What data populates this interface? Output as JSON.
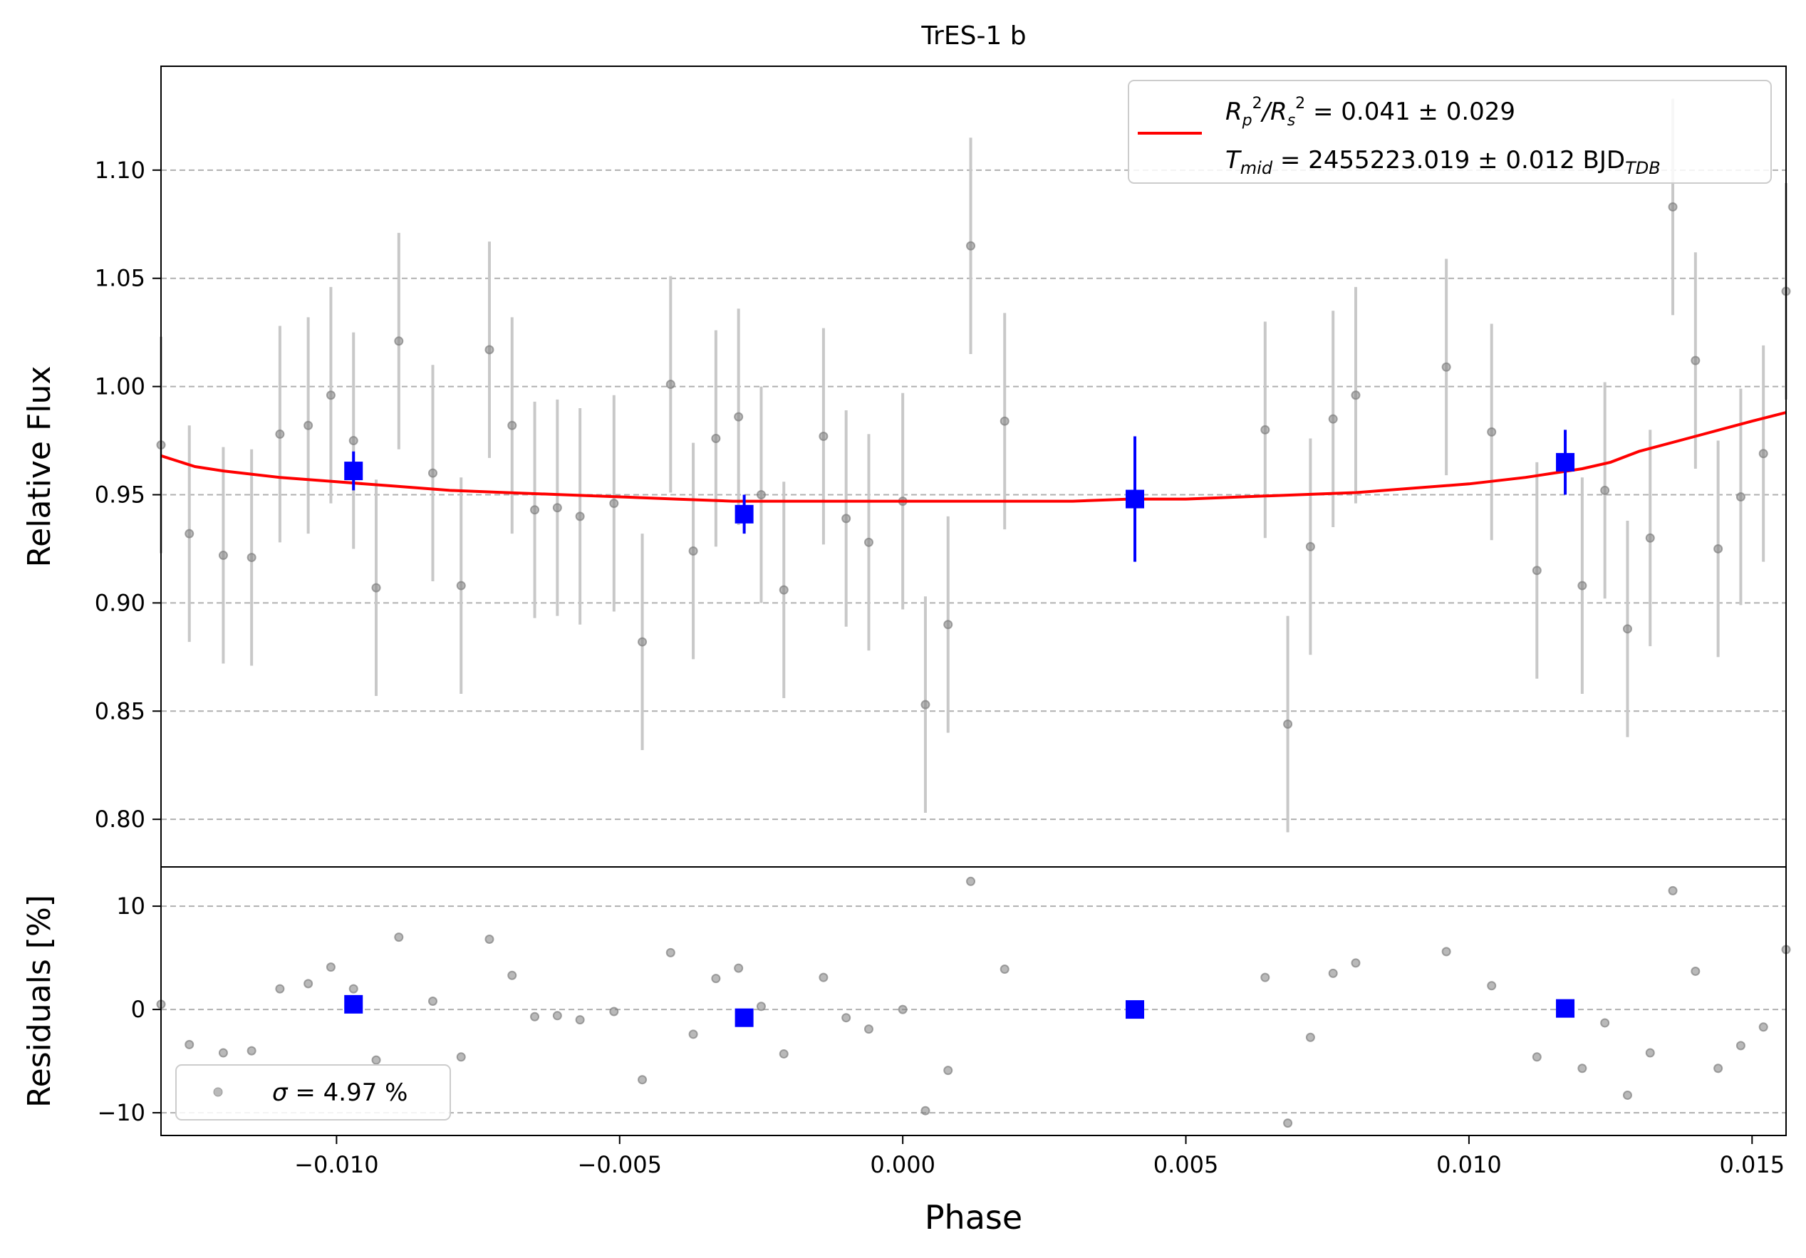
{
  "chart_data": [
    {
      "type": "scatter",
      "title": "TrES-1 b",
      "xlabel": "",
      "ylabel": "Relative Flux",
      "xlim": [
        -0.0131,
        0.0156
      ],
      "ylim": [
        0.778,
        1.148
      ],
      "yticks": [
        0.8,
        0.85,
        0.9,
        0.95,
        1.0,
        1.05,
        1.1
      ],
      "ytick_labels": [
        "0.80",
        "0.85",
        "0.90",
        "0.95",
        "1.00",
        "1.05",
        "1.10"
      ],
      "grid": "y-dashed",
      "legend_position": "top-right",
      "legend": {
        "line1": [
          "R",
          "p",
          "2",
          "/R",
          "s",
          "2",
          " = 0.041 ± 0.029"
        ],
        "line2": [
          "T",
          "mid",
          " = 2455223.019 ± 0.012 BJD",
          "TDB"
        ]
      },
      "colors": {
        "data": "#808080",
        "errorbar": "#c8c8c8",
        "binned": "#0000ff",
        "model": "#ff0000"
      },
      "series": [
        {
          "kind": "raw-data",
          "x": [
            -0.0131,
            -0.0126,
            -0.012,
            -0.0115,
            -0.011,
            -0.0105,
            -0.0101,
            -0.0097,
            -0.0093,
            -0.0089,
            -0.0083,
            -0.0078,
            -0.0073,
            -0.0069,
            -0.0065,
            -0.0061,
            -0.0057,
            -0.0051,
            -0.0046,
            -0.0041,
            -0.0037,
            -0.0033,
            -0.0029,
            -0.0025,
            -0.0021,
            -0.0014,
            -0.001,
            -0.0006,
            0.0,
            0.0004,
            0.0008,
            0.0012,
            0.0018,
            0.0064,
            0.0068,
            0.0072,
            0.0076,
            0.008,
            0.0096,
            0.0104,
            0.0112,
            0.012,
            0.0124,
            0.0128,
            0.0132,
            0.0136,
            0.014,
            0.0144,
            0.0148,
            0.0152,
            0.0156
          ],
          "y": [
            0.973,
            0.932,
            0.922,
            0.921,
            0.978,
            0.982,
            0.996,
            0.975,
            0.907,
            1.021,
            0.96,
            0.908,
            1.017,
            0.982,
            0.943,
            0.944,
            0.94,
            0.946,
            0.882,
            1.001,
            0.924,
            0.976,
            0.986,
            0.95,
            0.906,
            0.977,
            0.939,
            0.928,
            0.947,
            0.853,
            0.89,
            1.065,
            0.984,
            0.98,
            0.844,
            0.926,
            0.985,
            0.996,
            1.009,
            0.979,
            0.915,
            0.908,
            0.952,
            0.888,
            0.93,
            1.083,
            1.012,
            0.925,
            0.949,
            0.969,
            1.044
          ],
          "yerr": 0.05
        },
        {
          "kind": "binned",
          "x": [
            -0.0097,
            -0.0028,
            0.0041,
            0.0117
          ],
          "y": [
            0.961,
            0.941,
            0.948,
            0.965
          ],
          "yerr": [
            0.009,
            0.009,
            0.029,
            0.015
          ]
        },
        {
          "kind": "model",
          "x": [
            -0.0131,
            -0.0125,
            -0.012,
            -0.011,
            -0.01,
            -0.009,
            -0.008,
            -0.007,
            -0.006,
            -0.005,
            -0.004,
            -0.003,
            -0.002,
            -0.001,
            0.0,
            0.001,
            0.002,
            0.003,
            0.004,
            0.005,
            0.006,
            0.007,
            0.008,
            0.009,
            0.01,
            0.011,
            0.012,
            0.0125,
            0.013,
            0.014,
            0.015,
            0.0156
          ],
          "y": [
            0.968,
            0.963,
            0.961,
            0.958,
            0.956,
            0.954,
            0.952,
            0.951,
            0.95,
            0.949,
            0.948,
            0.947,
            0.947,
            0.947,
            0.947,
            0.947,
            0.947,
            0.947,
            0.948,
            0.948,
            0.949,
            0.95,
            0.951,
            0.953,
            0.955,
            0.958,
            0.962,
            0.965,
            0.97,
            0.977,
            0.984,
            0.988
          ]
        }
      ]
    },
    {
      "type": "scatter",
      "title": "",
      "xlabel": "Phase",
      "ylabel": "Residuals [%]",
      "xlim": [
        -0.0131,
        0.0156
      ],
      "ylim": [
        -12.2,
        13.8
      ],
      "xticks": [
        -0.01,
        -0.005,
        0.0,
        0.005,
        0.01,
        0.015
      ],
      "xtick_labels": [
        "−0.010",
        "−0.005",
        "0.000",
        "0.005",
        "0.010",
        "0.015"
      ],
      "yticks": [
        -10,
        0,
        10
      ],
      "ytick_labels": [
        "−10",
        "0",
        "10"
      ],
      "grid": "y-dashed",
      "legend_position": "bottom-left",
      "legend": {
        "sigma_symbol": "σ",
        "sigma_text": " = 4.97 %"
      },
      "series": [
        {
          "kind": "raw-residuals",
          "x": [
            -0.0131,
            -0.0126,
            -0.012,
            -0.0115,
            -0.011,
            -0.0105,
            -0.0101,
            -0.0097,
            -0.0093,
            -0.0089,
            -0.0083,
            -0.0078,
            -0.0073,
            -0.0069,
            -0.0065,
            -0.0061,
            -0.0057,
            -0.0051,
            -0.0046,
            -0.0041,
            -0.0037,
            -0.0033,
            -0.0029,
            -0.0025,
            -0.0021,
            -0.0014,
            -0.001,
            -0.0006,
            0.0,
            0.0004,
            0.0008,
            0.0012,
            0.0018,
            0.0064,
            0.0068,
            0.0072,
            0.0076,
            0.008,
            0.0096,
            0.0104,
            0.0112,
            0.012,
            0.0124,
            0.0128,
            0.0132,
            0.0136,
            0.014,
            0.0144,
            0.0148,
            0.0152,
            0.0156
          ],
          "y": [
            0.5,
            -3.4,
            -4.2,
            -4.0,
            2.0,
            2.5,
            4.1,
            2.0,
            -4.9,
            7.0,
            0.8,
            -4.6,
            6.8,
            3.3,
            -0.7,
            -0.6,
            -1.0,
            -0.2,
            -6.8,
            5.5,
            -2.4,
            3.0,
            4.0,
            0.3,
            -4.3,
            3.1,
            -0.8,
            -1.9,
            0.0,
            -9.8,
            -5.9,
            12.4,
            3.9,
            3.1,
            -11.0,
            -2.7,
            3.5,
            4.5,
            5.6,
            2.3,
            -4.6,
            -5.7,
            -1.3,
            -8.3,
            -4.2,
            11.5,
            3.7,
            -5.7,
            -3.5,
            -1.7,
            5.8
          ]
        },
        {
          "kind": "binned-residuals",
          "x": [
            -0.0097,
            -0.0028,
            0.0041,
            0.0117
          ],
          "y": [
            0.5,
            -0.8,
            0.0,
            0.1
          ]
        }
      ]
    }
  ]
}
